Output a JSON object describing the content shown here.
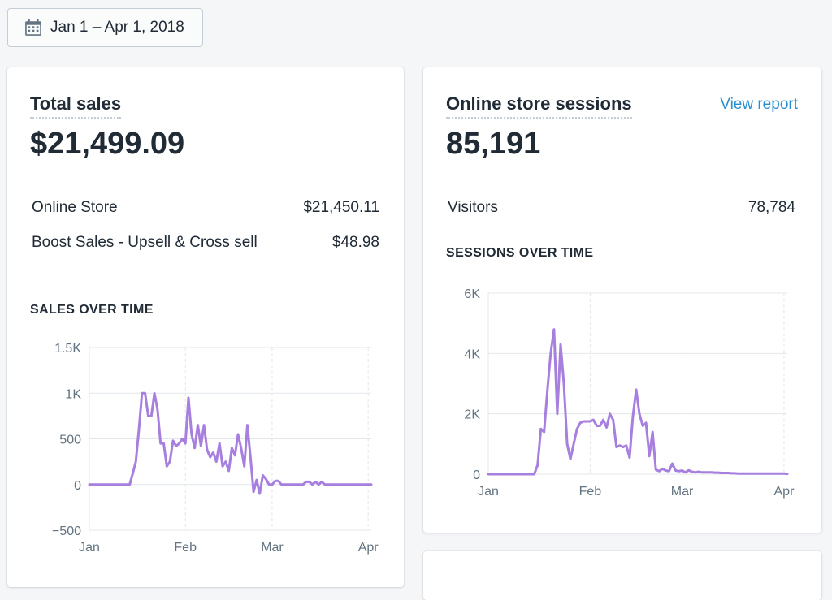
{
  "date_range": {
    "label": "Jan 1 – Apr 1, 2018",
    "icon": "calendar-icon"
  },
  "total_sales": {
    "title": "Total sales",
    "value": "$21,499.09",
    "breakdown": [
      {
        "label": "Online Store",
        "value": "$21,450.11"
      },
      {
        "label": "Boost Sales - Upsell & Cross sell",
        "value": "$48.98"
      }
    ],
    "chart_label": "SALES OVER TIME"
  },
  "sessions": {
    "title": "Online store sessions",
    "link": "View report",
    "value": "85,191",
    "breakdown": [
      {
        "label": "Visitors",
        "value": "78,784"
      }
    ],
    "chart_label": "SESSIONS OVER TIME"
  },
  "colors": {
    "line": "#a77fde",
    "link": "#2a8fd0",
    "grid": "#e3e7eb"
  },
  "chart_data": [
    {
      "type": "line",
      "title": "SALES OVER TIME",
      "xlabel": "",
      "ylabel": "",
      "x_ticks": [
        "Jan",
        "Feb",
        "Mar",
        "Apr"
      ],
      "y_ticks": [
        "1.5K",
        "1K",
        "500",
        "0",
        "−500"
      ],
      "y_tick_values": [
        1500,
        1000,
        500,
        0,
        -500
      ],
      "ylim": [
        -500,
        1500
      ],
      "xlim": [
        0,
        91
      ],
      "grid": true,
      "series": [
        {
          "x": [
            0,
            13,
            14,
            15,
            16,
            17,
            18,
            19,
            20,
            21,
            22,
            23,
            24,
            25,
            26,
            27,
            28,
            29,
            30,
            31,
            32,
            33,
            34,
            35,
            36,
            37,
            38,
            39,
            40,
            41,
            42,
            43,
            44,
            45,
            46,
            47,
            48,
            49,
            50,
            51,
            52,
            53,
            54,
            55,
            56,
            57,
            58,
            59,
            60,
            61,
            62,
            63,
            64,
            65,
            66,
            67,
            68,
            69,
            70,
            71,
            72,
            73,
            74,
            75,
            76,
            80,
            81,
            82,
            83,
            84,
            85,
            86,
            87,
            88,
            90,
            91
          ],
          "y": [
            0,
            0,
            120,
            250,
            600,
            1000,
            1000,
            750,
            750,
            1000,
            820,
            450,
            450,
            200,
            250,
            480,
            420,
            450,
            500,
            450,
            950,
            550,
            400,
            650,
            420,
            650,
            380,
            300,
            350,
            250,
            450,
            200,
            250,
            150,
            400,
            320,
            550,
            400,
            200,
            650,
            300,
            -80,
            50,
            -100,
            100,
            60,
            0,
            0,
            40,
            40,
            0,
            0,
            0,
            0,
            0,
            0,
            0,
            0,
            30,
            30,
            0,
            30,
            0,
            30,
            0,
            0,
            0,
            0,
            0,
            0,
            0,
            0,
            0,
            0,
            0,
            0
          ]
        }
      ]
    },
    {
      "type": "line",
      "title": "SESSIONS OVER TIME",
      "xlabel": "",
      "ylabel": "",
      "x_ticks": [
        "Jan",
        "Feb",
        "Mar",
        "Apr"
      ],
      "y_ticks": [
        "6K",
        "4K",
        "2K",
        "0"
      ],
      "y_tick_values": [
        6000,
        4000,
        2000,
        0
      ],
      "ylim": [
        0,
        6000
      ],
      "xlim": [
        0,
        91
      ],
      "grid": true,
      "series": [
        {
          "x": [
            0,
            14,
            15,
            16,
            17,
            18,
            19,
            20,
            21,
            22,
            23,
            24,
            25,
            26,
            27,
            28,
            29,
            30,
            31,
            32,
            33,
            34,
            35,
            36,
            37,
            38,
            39,
            40,
            41,
            42,
            43,
            44,
            45,
            46,
            47,
            48,
            49,
            50,
            51,
            52,
            53,
            54,
            55,
            56,
            57,
            58,
            59,
            60,
            61,
            62,
            63,
            64,
            65,
            66,
            67,
            68,
            69,
            70,
            71,
            72,
            73,
            74,
            75,
            76,
            78,
            80,
            82,
            84,
            86,
            88,
            90,
            91
          ],
          "y": [
            0,
            0,
            300,
            1500,
            1400,
            2800,
            4000,
            4800,
            2000,
            4300,
            3000,
            1000,
            500,
            1000,
            1500,
            1700,
            1750,
            1750,
            1750,
            1800,
            1600,
            1600,
            1800,
            1550,
            2000,
            1800,
            900,
            950,
            900,
            950,
            550,
            1900,
            2800,
            2000,
            1600,
            1700,
            600,
            1400,
            150,
            100,
            180,
            120,
            100,
            350,
            120,
            100,
            120,
            60,
            130,
            80,
            60,
            80,
            60,
            60,
            60,
            60,
            50,
            50,
            40,
            40,
            40,
            30,
            30,
            20,
            20,
            20,
            20,
            20,
            20,
            20,
            20,
            10
          ]
        }
      ]
    }
  ]
}
